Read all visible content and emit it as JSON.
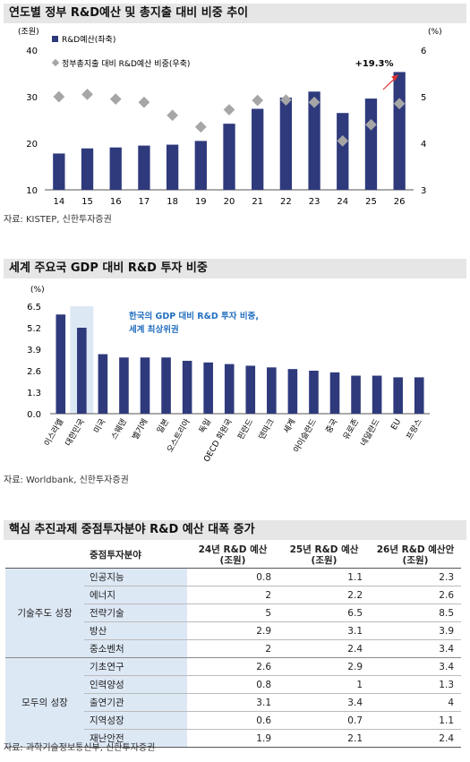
{
  "chart1": {
    "title": "연도별 정부 R&D예산 및 총지출 대비 비중 추이",
    "source": "자료: KISTEP, 신한투자증권",
    "chart_data": {
      "type": "bar",
      "categories": [
        "14",
        "15",
        "16",
        "17",
        "18",
        "19",
        "20",
        "21",
        "22",
        "23",
        "24",
        "25",
        "26"
      ],
      "series": [
        {
          "name": "R&D예산(좌축)",
          "values": [
            17.8,
            18.9,
            19.1,
            19.5,
            19.7,
            20.5,
            24.2,
            27.4,
            29.8,
            31.1,
            26.5,
            29.6,
            35.3
          ],
          "type": "bar",
          "axis": "left",
          "color": "#2e3a7c"
        },
        {
          "name": "정부총지출 대비 R&D예산 비중(우축)",
          "values": [
            5.0,
            5.05,
            4.95,
            4.88,
            4.6,
            4.35,
            4.72,
            4.92,
            4.93,
            4.88,
            4.05,
            4.4,
            4.85
          ],
          "type": "scatter",
          "axis": "right",
          "color": "#a6a6a6"
        }
      ],
      "yleft_label": "(조원)",
      "yleft_ticks": [
        10,
        20,
        30,
        40
      ],
      "ylim_left": [
        10,
        40
      ],
      "yright_label": "(%)",
      "yright_ticks": [
        3,
        4,
        5,
        6
      ],
      "ylim_right": [
        3,
        6
      ],
      "annotation": "+19.3%"
    }
  },
  "chart2": {
    "title": "세계 주요국 GDP 대비 R&D 투자 비중",
    "source": "자료: Worldbank, 신한투자증권",
    "chart_data": {
      "type": "bar",
      "categories": [
        "이스라엘",
        "대한민국",
        "미국",
        "스웨덴",
        "벨기에",
        "일본",
        "오스트리아",
        "독일",
        "OECD 회원국",
        "핀란드",
        "덴마크",
        "세계",
        "아이슬란드",
        "중국",
        "유로존",
        "네덜란드",
        "EU",
        "프랑스"
      ],
      "values": [
        6.0,
        5.2,
        3.6,
        3.4,
        3.4,
        3.4,
        3.2,
        3.1,
        3.0,
        2.9,
        2.8,
        2.7,
        2.6,
        2.5,
        2.3,
        2.3,
        2.2,
        2.2
      ],
      "ylabel": "(%)",
      "yticks": [
        0.0,
        1.3,
        2.6,
        3.9,
        5.2,
        6.5
      ],
      "ylim": [
        0,
        6.5
      ],
      "highlight": "대한민국",
      "annotation": [
        "한국의 GDP 대비 R&D 투자 비중,",
        "세계 최상위권"
      ],
      "bar_color": "#2e3a7c",
      "highlight_color": "#dde8f5",
      "annotation_color": "#2470c0"
    }
  },
  "table": {
    "title": "핵심 추진과제 중점투자분야 R&D 예산 대폭 증가",
    "source": "자료: 과학기술정보통신부, 신한투자증권",
    "headers": {
      "field": "중점투자분야",
      "c24a": "24년 R&D 예산",
      "c24b": "(조원)",
      "c25a": "25년 R&D 예산",
      "c25b": "(조원)",
      "c26a": "26년 R&D 예산안",
      "c26b": "(조원)"
    },
    "groups": [
      {
        "name": "기술주도 성장",
        "rows": [
          {
            "field": "인공지능",
            "v24": "0.8",
            "v25": "1.1",
            "v26": "2.3"
          },
          {
            "field": "에너지",
            "v24": "2",
            "v25": "2.2",
            "v26": "2.6"
          },
          {
            "field": "전략기술",
            "v24": "5",
            "v25": "6.5",
            "v26": "8.5"
          },
          {
            "field": "방산",
            "v24": "2.9",
            "v25": "3.1",
            "v26": "3.9"
          },
          {
            "field": "중소벤처",
            "v24": "2",
            "v25": "2.4",
            "v26": "3.4"
          }
        ]
      },
      {
        "name": "모두의 성장",
        "rows": [
          {
            "field": "기초연구",
            "v24": "2.6",
            "v25": "2.9",
            "v26": "3.4"
          },
          {
            "field": "인력양성",
            "v24": "0.8",
            "v25": "1",
            "v26": "1.3"
          },
          {
            "field": "출연기관",
            "v24": "3.1",
            "v25": "3.4",
            "v26": "4"
          },
          {
            "field": "지역성장",
            "v24": "0.6",
            "v25": "0.7",
            "v26": "1.1"
          },
          {
            "field": "재난안전",
            "v24": "1.9",
            "v25": "2.1",
            "v26": "2.4"
          }
        ]
      }
    ]
  }
}
